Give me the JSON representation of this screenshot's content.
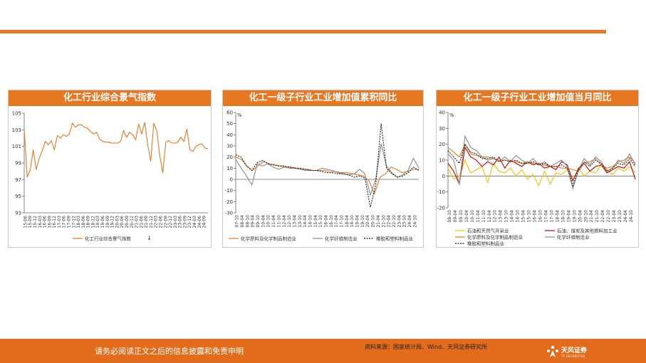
{
  "footer": {
    "disclaimer": "请务必阅读正文之后的信息披露和免责申明",
    "source": "资料来源：国家统计局、Wind、天风证券研究所",
    "brand": "天风证券",
    "brand_sub": "TF SECURITIES"
  },
  "colors": {
    "accent": "#e87722",
    "footer": "#e36c1c"
  },
  "chart_data": [
    {
      "type": "line",
      "title": "化工行业综合景气指数",
      "ylim": [
        93,
        105
      ],
      "yticks": [
        93,
        95,
        97,
        99,
        101,
        103,
        105
      ],
      "x_tick_labels": [
        "15-06",
        "15-09",
        "15-12",
        "16-03",
        "16-06",
        "16-09",
        "16-12",
        "17-03",
        "17-06",
        "17-09",
        "17-12",
        "18-03",
        "18-06",
        "18-09",
        "18-12",
        "19-03",
        "19-06",
        "19-09",
        "19-12",
        "20-03",
        "20-06",
        "20-09",
        "20-12",
        "21-03",
        "21-06",
        "21-09",
        "21-12",
        "22-03",
        "22-06",
        "22-09",
        "22-12",
        "23-03",
        "23-06",
        "23-09",
        "23-12",
        "24-03",
        "24-06",
        "24-09"
      ],
      "legend_position": "bottom",
      "series": [
        {
          "name": "化工行业综合景气指数",
          "color": "#e87722",
          "values": [
            103.0,
            97.3,
            98.2,
            100.6,
            98.2,
            99.6,
            100.5,
            101.6,
            101.2,
            101.7,
            100.6,
            102.3,
            102.0,
            102.4,
            102.2,
            102.5,
            103.8,
            103.3,
            103.6,
            103.6,
            103.3,
            103.2,
            102.8,
            102.5,
            102.7,
            101.9,
            101.6,
            101.5,
            101.5,
            101.4,
            101.4,
            101.4,
            101.6,
            102.9,
            102.1,
            102.7,
            102.4,
            101.8,
            103.7,
            102.5,
            103.9,
            101.2,
            99.2,
            103.8,
            102.9,
            99.9,
            97.8,
            101.5,
            101.7,
            101.4,
            101.4,
            101.5,
            102.1,
            101.6,
            103.1,
            100.6,
            100.4,
            101.0,
            101.2,
            101.3,
            100.8,
            100.7
          ]
        }
      ],
      "legend_arrow": "↓"
    },
    {
      "type": "line",
      "title": "化工一级子行业工业增加值累积同比",
      "unit": "%",
      "ylim": [
        -30,
        60
      ],
      "yticks": [
        -30,
        -20,
        -10,
        0,
        10,
        20,
        30,
        40,
        50,
        60
      ],
      "x_tick_labels": [
        "07-10",
        "08-04",
        "08-10",
        "09-04",
        "09-10",
        "10-04",
        "10-10",
        "11-04",
        "11-10",
        "12-04",
        "12-10",
        "13-04",
        "13-10",
        "14-04",
        "14-10",
        "15-04",
        "15-10",
        "16-04",
        "16-10",
        "17-04",
        "17-10",
        "18-04",
        "18-10",
        "19-04",
        "19-10",
        "20-04",
        "20-10",
        "21-04",
        "21-10",
        "22-04",
        "22-10",
        "23-04",
        "23-10",
        "24-04",
        "24-10"
      ],
      "legend_position": "bottom",
      "series": [
        {
          "name": "化学原料及化学制品制造业",
          "color": "#e87722",
          "style": "solid",
          "values": [
            20,
            18,
            12,
            8,
            12,
            16,
            14,
            13,
            12,
            11,
            11,
            10,
            9,
            9,
            8,
            8,
            8,
            7,
            7,
            6,
            6,
            5,
            4,
            3,
            -1,
            -13,
            2,
            5,
            11,
            9,
            6,
            7,
            9,
            9
          ]
        },
        {
          "name": "化学纤维制造业",
          "color": "#8a8a8a",
          "style": "solid",
          "values": [
            18,
            10,
            3,
            -5,
            14,
            12,
            14,
            11,
            9,
            11,
            10,
            10,
            9,
            8,
            8,
            8,
            10,
            9,
            8,
            6,
            5,
            4,
            5,
            9,
            5,
            -14,
            0,
            32,
            12,
            6,
            2,
            4,
            8,
            19,
            10
          ]
        },
        {
          "name": "橡胶和塑料制品业",
          "color": "#1a1a1a",
          "style": "dashed",
          "values": [
            22,
            20,
            12,
            8,
            15,
            17,
            14,
            13,
            12,
            12,
            11,
            10,
            10,
            9,
            8,
            8,
            7,
            6,
            6,
            5,
            5,
            4,
            2,
            3,
            1,
            -25,
            -5,
            50,
            10,
            5,
            2,
            3,
            6,
            11,
            8
          ]
        }
      ]
    },
    {
      "type": "line",
      "title": "化工一级子行业工业增加值当月同比",
      "unit": "%",
      "ylim": [
        -20,
        40
      ],
      "yticks": [
        -20,
        -10,
        0,
        10,
        20,
        30,
        40
      ],
      "x_tick_labels": [
        "08-10",
        "09-04",
        "09-10",
        "10-04",
        "10-10",
        "11-04",
        "11-10",
        "12-04",
        "12-10",
        "13-04",
        "13-10",
        "14-04",
        "14-10",
        "15-04",
        "15-10",
        "16-04",
        "16-10",
        "17-04",
        "17-10",
        "18-04",
        "18-10",
        "19-04",
        "19-10",
        "20-04",
        "20-10",
        "21-04",
        "21-10",
        "22-04",
        "22-10",
        "23-04",
        "23-10",
        "24-04",
        "24-10"
      ],
      "legend_position": "bottom",
      "series": [
        {
          "name": "石油和天然气开采业",
          "color": "#f2c200",
          "style": "solid",
          "values": [
            5,
            -2,
            0,
            10,
            2,
            4,
            6,
            -4,
            8,
            3,
            2,
            5,
            0,
            4,
            -2,
            1,
            -6,
            3,
            -5,
            2,
            1,
            4,
            -3,
            5,
            0,
            3,
            2,
            7,
            4,
            1,
            5,
            3,
            6,
            2
          ]
        },
        {
          "name": "石油、煤炭及其他燃料加工业",
          "color": "#c00000",
          "style": "solid",
          "values": [
            8,
            3,
            -5,
            18,
            12,
            10,
            6,
            9,
            7,
            12,
            5,
            10,
            8,
            6,
            9,
            7,
            8,
            5,
            6,
            4,
            9,
            7,
            -3,
            5,
            8,
            3,
            6,
            7,
            2,
            4,
            6,
            5,
            9,
            -2
          ]
        },
        {
          "name": "化学原料及化学制品制造业",
          "color": "#e87722",
          "style": "solid",
          "values": [
            18,
            15,
            12,
            20,
            14,
            13,
            12,
            12,
            11,
            10,
            10,
            9,
            9,
            8,
            9,
            8,
            7,
            7,
            6,
            6,
            5,
            5,
            4,
            3,
            8,
            9,
            11,
            7,
            5,
            6,
            9,
            10,
            12,
            8
          ]
        },
        {
          "name": "化学纤维制造业",
          "color": "#8a8a8a",
          "style": "solid",
          "values": [
            14,
            10,
            -5,
            25,
            18,
            16,
            12,
            10,
            11,
            9,
            12,
            9,
            13,
            10,
            8,
            11,
            7,
            9,
            6,
            8,
            10,
            6,
            -8,
            4,
            11,
            7,
            12,
            9,
            3,
            5,
            10,
            8,
            14,
            7
          ]
        },
        {
          "name": "橡胶和塑料制品业",
          "color": "#1a1a1a",
          "style": "dashed",
          "values": [
            16,
            12,
            8,
            20,
            15,
            14,
            11,
            11,
            12,
            9,
            10,
            9,
            10,
            8,
            8,
            9,
            7,
            8,
            6,
            6,
            7,
            5,
            -6,
            4,
            9,
            6,
            10,
            8,
            3,
            5,
            8,
            7,
            11,
            6
          ]
        }
      ]
    }
  ]
}
